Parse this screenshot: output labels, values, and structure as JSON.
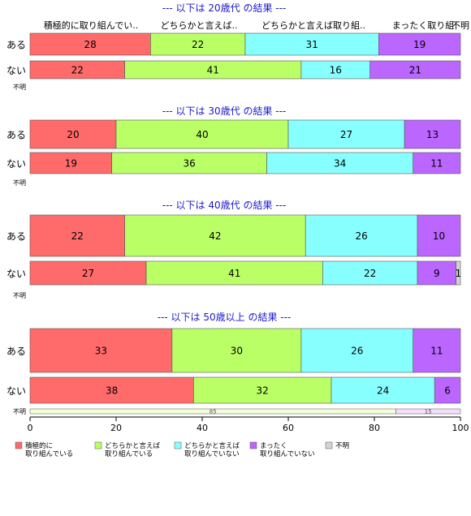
{
  "chart_data": {
    "type": "bar",
    "orientation": "horizontal",
    "stacked": true,
    "xlim": [
      0,
      100
    ],
    "x_ticks": [
      "0",
      "20",
      "40",
      "60",
      "80",
      "100"
    ],
    "grid": false,
    "legend_position": "bottom",
    "category_column_headers": [
      "積極的に取り組んでい..",
      "どちらかと言えば..",
      "どちらかと言えば取り組..",
      "まったく取り組",
      "不明"
    ],
    "response_categories": [
      {
        "key": "c1",
        "legend": [
          "積極的に",
          "取り組んでいる"
        ],
        "color": "#ff6b6b"
      },
      {
        "key": "c2",
        "legend": [
          "どちらかと言えば",
          "取り組んでいる"
        ],
        "color": "#bbff66"
      },
      {
        "key": "c3",
        "legend": [
          "どちらかと言えば",
          "取り組んでいない"
        ],
        "color": "#88ffff"
      },
      {
        "key": "c4",
        "legend": [
          "まったく",
          "取り組んでいない"
        ],
        "color": "#bb66ff"
      },
      {
        "key": "c5",
        "legend": [
          "不明"
        ],
        "color": "#d3d3d3"
      }
    ],
    "panels": [
      {
        "title": "--- 以下は 20歳代 の結果 ---",
        "rows": [
          {
            "label": "ある",
            "values": [
              28,
              22,
              31,
              19,
              0
            ]
          },
          {
            "label": "ない",
            "values": [
              22,
              41,
              16,
              21,
              0
            ]
          }
        ],
        "unknown_row": {
          "label": "不明",
          "segments": []
        }
      },
      {
        "title": "--- 以下は 30歳代 の結果 ---",
        "rows": [
          {
            "label": "ある",
            "values": [
              20,
              40,
              27,
              13,
              0
            ]
          },
          {
            "label": "ない",
            "values": [
              19,
              36,
              34,
              11,
              0
            ]
          }
        ],
        "unknown_row": {
          "label": "不明",
          "segments": []
        }
      },
      {
        "title": "--- 以下は 40歳代 の結果 ---",
        "rows": [
          {
            "label": "ある",
            "values": [
              22,
              42,
              26,
              10,
              0
            ]
          },
          {
            "label": "ない",
            "values": [
              27,
              41,
              22,
              9,
              1
            ]
          }
        ],
        "unknown_row": {
          "label": "不明",
          "segments": []
        }
      },
      {
        "title": "--- 以下は 50歳以上 の結果 ---",
        "rows": [
          {
            "label": "ある",
            "values": [
              33,
              30,
              26,
              11,
              0
            ]
          },
          {
            "label": "ない",
            "values": [
              38,
              32,
              24,
              6,
              0
            ]
          }
        ],
        "unknown_row": {
          "label": "不明",
          "segments": [
            {
              "value": 85,
              "color": "#f2ffd9"
            },
            {
              "value": 15,
              "color": "#f6ddff"
            }
          ]
        }
      }
    ]
  }
}
